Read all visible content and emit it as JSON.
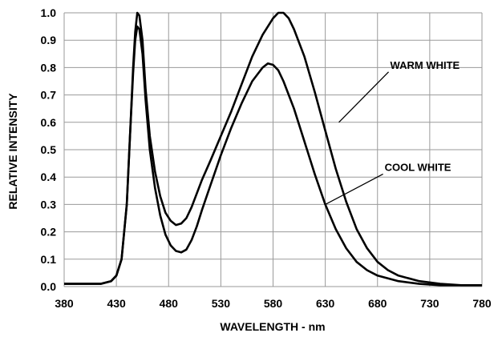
{
  "chart_data": {
    "type": "line",
    "xlabel": "WAVELENGTH - nm",
    "ylabel": "RELATIVE INTENSITY",
    "xlim": [
      380,
      780
    ],
    "ylim": [
      0,
      1
    ],
    "grid": true,
    "xticks": [
      380,
      430,
      480,
      530,
      580,
      630,
      680,
      730,
      780
    ],
    "xtick_labels": [
      "380",
      "430",
      "480",
      "530",
      "580",
      "630",
      "680",
      "730",
      "780"
    ],
    "yticks": [
      0,
      0.1,
      0.2,
      0.3,
      0.4,
      0.5,
      0.6,
      0.7,
      0.8,
      0.9,
      1.0
    ],
    "ytick_labels": [
      "0.0",
      "0.1",
      "0.2",
      "0.3",
      "0.4",
      "0.5",
      "0.6",
      "0.7",
      "0.8",
      "0.9",
      "1.0"
    ],
    "series": [
      {
        "name": "WARM WHITE",
        "label_anchor": [
          643,
          0.6
        ],
        "x": [
          380,
          400,
          415,
          425,
          430,
          435,
          440,
          443,
          446,
          448,
          450,
          452,
          455,
          458,
          462,
          467,
          472,
          477,
          482,
          487,
          492,
          497,
          502,
          507,
          512,
          520,
          530,
          540,
          550,
          560,
          570,
          580,
          585,
          590,
          595,
          600,
          610,
          620,
          630,
          640,
          650,
          660,
          670,
          680,
          690,
          700,
          720,
          740,
          760,
          780
        ],
        "y": [
          0.01,
          0.01,
          0.01,
          0.02,
          0.04,
          0.1,
          0.3,
          0.55,
          0.8,
          0.93,
          1.0,
          0.99,
          0.9,
          0.72,
          0.55,
          0.42,
          0.33,
          0.27,
          0.24,
          0.225,
          0.23,
          0.25,
          0.29,
          0.34,
          0.39,
          0.46,
          0.55,
          0.64,
          0.74,
          0.84,
          0.92,
          0.98,
          1.0,
          1.0,
          0.98,
          0.94,
          0.84,
          0.71,
          0.57,
          0.43,
          0.31,
          0.21,
          0.14,
          0.09,
          0.06,
          0.04,
          0.02,
          0.01,
          0.005,
          0.005
        ]
      },
      {
        "name": "COOL WHITE",
        "label_anchor": [
          630,
          0.3
        ],
        "x": [
          380,
          400,
          415,
          425,
          430,
          435,
          440,
          443,
          446,
          448,
          450,
          452,
          455,
          458,
          462,
          467,
          472,
          477,
          482,
          487,
          492,
          497,
          502,
          507,
          512,
          520,
          530,
          540,
          550,
          560,
          570,
          575,
          580,
          585,
          590,
          600,
          610,
          620,
          630,
          640,
          650,
          660,
          670,
          680,
          690,
          700,
          720,
          740,
          760,
          780
        ],
        "y": [
          0.01,
          0.01,
          0.01,
          0.02,
          0.04,
          0.1,
          0.3,
          0.55,
          0.78,
          0.9,
          0.95,
          0.94,
          0.85,
          0.68,
          0.5,
          0.36,
          0.26,
          0.19,
          0.15,
          0.13,
          0.125,
          0.135,
          0.17,
          0.22,
          0.28,
          0.37,
          0.48,
          0.58,
          0.67,
          0.75,
          0.8,
          0.815,
          0.81,
          0.79,
          0.75,
          0.65,
          0.53,
          0.41,
          0.3,
          0.21,
          0.14,
          0.09,
          0.06,
          0.04,
          0.03,
          0.02,
          0.01,
          0.005,
          0.005,
          0.005
        ]
      }
    ]
  }
}
